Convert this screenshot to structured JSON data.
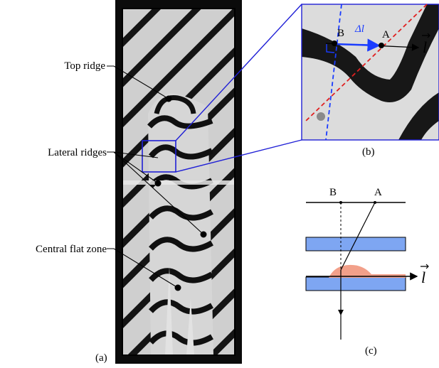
{
  "panel_a": {
    "labels": {
      "top_ridge": "Top ridge",
      "lateral_ridges": "Lateral ridges",
      "central_flat_zone": "Central flat zone"
    },
    "caption": "(a)"
  },
  "panel_b": {
    "point_b": "B",
    "point_a": "A",
    "delta_label": "Δl",
    "vector_label": "l",
    "caption": "(b)"
  },
  "panel_c": {
    "point_b": "B",
    "point_a": "A",
    "vector_label": "l",
    "caption": "(c)"
  },
  "colors": {
    "zoom_box": "#1f1fd6",
    "delta_arrow": "#1a3cff",
    "dashed_red": "#e02020",
    "dashed_blue": "#1a3cff",
    "band_blue": "#7ea6f2",
    "droplet": "#f2a08a",
    "image_dark": "#0d0d0d"
  }
}
